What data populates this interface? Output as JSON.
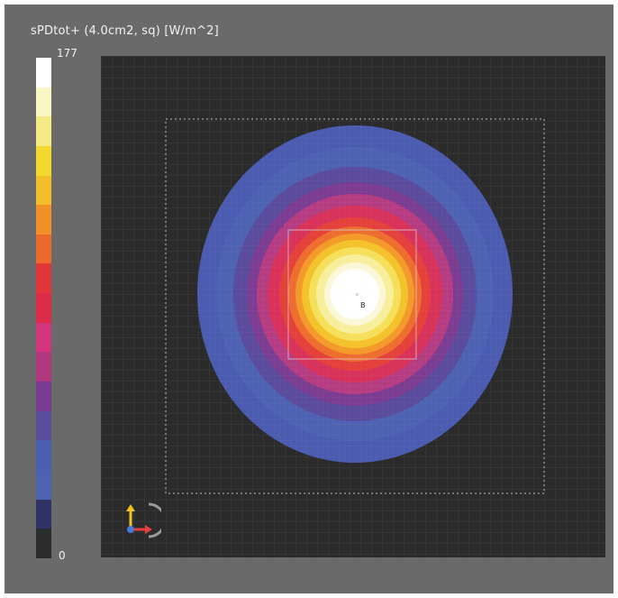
{
  "colorbar": {
    "title": "sPDtot+ (4.0cm2, sq) [W/m^2]",
    "max_label": "177",
    "min_label": "0",
    "bands_top_to_bottom": [
      "#ffffff",
      "#fbf6c6",
      "#f6ea86",
      "#f3d92f",
      "#f4bd2a",
      "#f19128",
      "#ea6a2d",
      "#e0363a",
      "#de2b4a",
      "#d4367d",
      "#b1377f",
      "#7a3c92",
      "#5a4d9e",
      "#4b5fb2",
      "#4c63b1",
      "#2f3266",
      "#2a2d2b"
    ]
  },
  "plot": {
    "marker_label": "B"
  }
}
